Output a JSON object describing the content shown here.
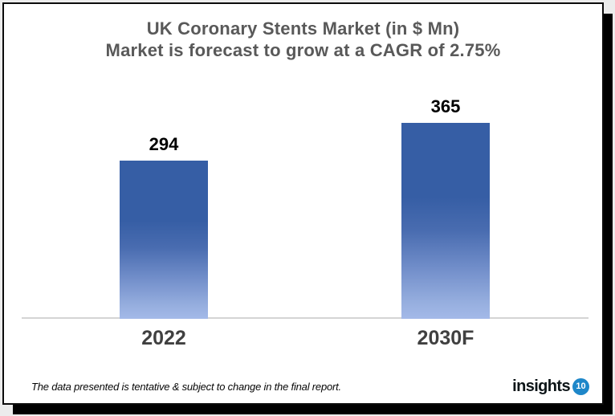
{
  "title": {
    "line1": "UK Coronary Stents Market (in $ Mn)",
    "line2": "Market is forecast to grow at a CAGR of 2.75%"
  },
  "chart_data": {
    "type": "bar",
    "categories": [
      "2022",
      "2030F"
    ],
    "values": [
      294,
      365
    ],
    "title": "UK Coronary Stents Market (in $ Mn)",
    "subtitle": "Market is forecast to grow at a CAGR of 2.75%",
    "xlabel": "",
    "ylabel": "",
    "ylim": [
      0,
      365
    ],
    "grid": false,
    "data_labels": [
      294,
      365
    ],
    "legend": "none",
    "bar_gradient_top": "#365ea5",
    "bar_gradient_bottom": "#a3b9e8",
    "axis_line_color": "#d4d4d4",
    "title_color": "#595959",
    "value_label_color": "#000000"
  },
  "footer": {
    "note": "The data presented is tentative & subject to change in the final report.",
    "logo_text": "insights",
    "logo_badge": "10",
    "logo_badge_color": "#1e87c9"
  }
}
